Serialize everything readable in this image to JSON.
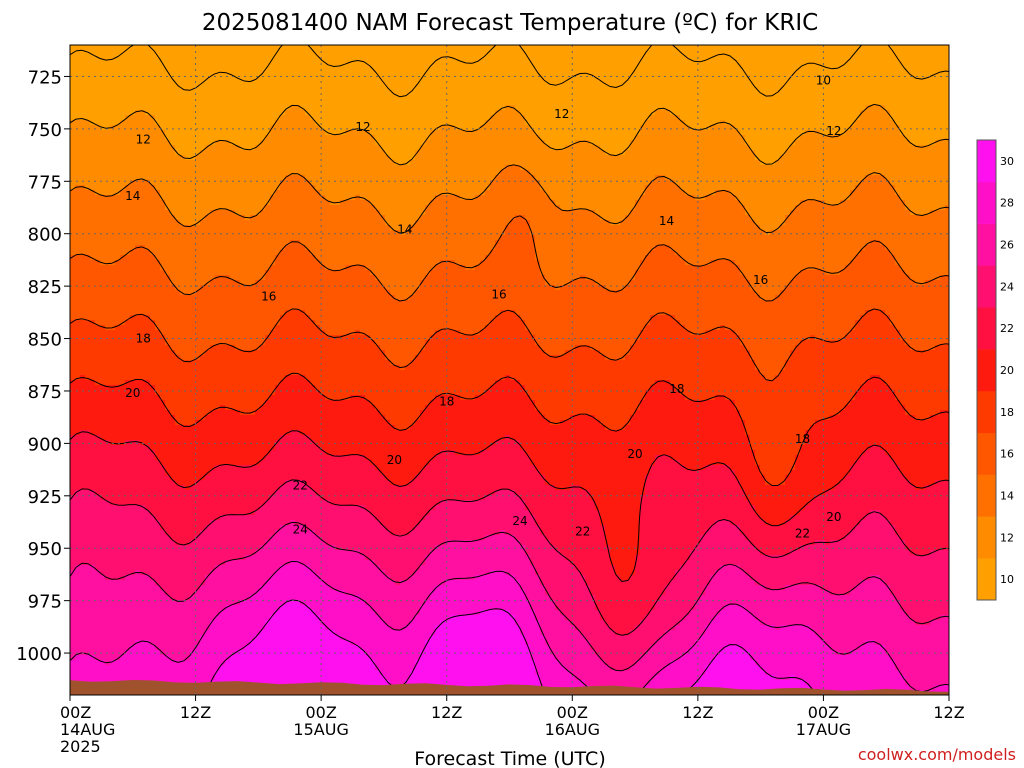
{
  "chart_data": {
    "type": "heatmap",
    "title": "2025081400 NAM Forecast Temperature (ºC) for KRIC",
    "xlabel": "Forecast Time (UTC)",
    "ylabel": "",
    "y_reversed": true,
    "ylim": [
      1020,
      710
    ],
    "y_ticks": [
      "725",
      "750",
      "775",
      "800",
      "825",
      "850",
      "875",
      "900",
      "925",
      "950",
      "975",
      "1000"
    ],
    "x_ticks": [
      {
        "hour": 0,
        "label": "00Z",
        "label2": "14AUG",
        "label3": "2025"
      },
      {
        "hour": 12,
        "label": "12Z",
        "label2": "",
        "label3": ""
      },
      {
        "hour": 24,
        "label": "00Z",
        "label2": "15AUG",
        "label3": ""
      },
      {
        "hour": 36,
        "label": "12Z",
        "label2": "",
        "label3": ""
      },
      {
        "hour": 48,
        "label": "00Z",
        "label2": "16AUG",
        "label3": ""
      },
      {
        "hour": 60,
        "label": "12Z",
        "label2": "",
        "label3": ""
      },
      {
        "hour": 72,
        "label": "00Z",
        "label2": "17AUG",
        "label3": ""
      },
      {
        "hour": 84,
        "label": "12Z",
        "label2": "",
        "label3": ""
      }
    ],
    "xlim": [
      0,
      84
    ],
    "grid": true,
    "colorbar": {
      "placement": "right",
      "levels": [
        10,
        12,
        14,
        16,
        18,
        20,
        22,
        24,
        26,
        28,
        30
      ],
      "colors": [
        "#ffa000",
        "#ff8c00",
        "#ff7000",
        "#ff5600",
        "#ff3a00",
        "#ff1a10",
        "#ff1040",
        "#ff1070",
        "#ff10a0",
        "#ff10c8",
        "#ff10ee"
      ]
    },
    "ground_color": "#a0522d",
    "contour_labels": [
      {
        "text": "10",
        "hour": 72.0,
        "p": 727
      },
      {
        "text": "12",
        "hour": 7.0,
        "p": 755
      },
      {
        "text": "12",
        "hour": 28.0,
        "p": 749
      },
      {
        "text": "12",
        "hour": 47.0,
        "p": 743
      },
      {
        "text": "12",
        "hour": 73.0,
        "p": 751
      },
      {
        "text": "14",
        "hour": 6.0,
        "p": 782
      },
      {
        "text": "14",
        "hour": 32.0,
        "p": 798
      },
      {
        "text": "14",
        "hour": 57.0,
        "p": 794
      },
      {
        "text": "16",
        "hour": 19.0,
        "p": 830
      },
      {
        "text": "16",
        "hour": 41.0,
        "p": 829
      },
      {
        "text": "16",
        "hour": 66.0,
        "p": 822
      },
      {
        "text": "18",
        "hour": 7.0,
        "p": 850
      },
      {
        "text": "18",
        "hour": 36.0,
        "p": 880
      },
      {
        "text": "18",
        "hour": 58.0,
        "p": 874
      },
      {
        "text": "18",
        "hour": 70.0,
        "p": 898
      },
      {
        "text": "20",
        "hour": 6.0,
        "p": 876
      },
      {
        "text": "20",
        "hour": 31.0,
        "p": 908
      },
      {
        "text": "20",
        "hour": 54.0,
        "p": 905
      },
      {
        "text": "20",
        "hour": 73.0,
        "p": 935
      },
      {
        "text": "22",
        "hour": 22.0,
        "p": 920
      },
      {
        "text": "22",
        "hour": 49.0,
        "p": 942
      },
      {
        "text": "22",
        "hour": 70.0,
        "p": 943
      },
      {
        "text": "24",
        "hour": 22.0,
        "p": 941
      },
      {
        "text": "24",
        "hour": 43.0,
        "p": 937
      }
    ]
  },
  "credit": "coolwx.com/models"
}
